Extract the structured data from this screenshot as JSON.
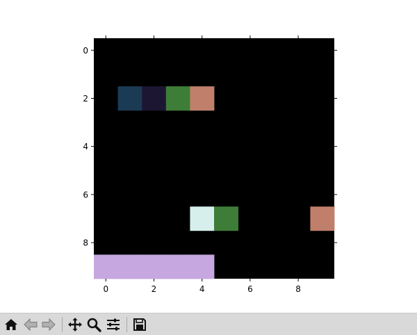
{
  "toolbar": {
    "buttons": [
      {
        "name": "home-icon"
      },
      {
        "name": "back-arrow-icon"
      },
      {
        "name": "forward-arrow-icon"
      },
      {
        "name": "pan-move-icon"
      },
      {
        "name": "zoom-magnifier-icon"
      },
      {
        "name": "configure-subplots-icon"
      },
      {
        "name": "save-disk-icon"
      }
    ]
  },
  "chart_data": {
    "type": "heatmap",
    "title": "",
    "xlabel": "",
    "ylabel": "",
    "rows": 10,
    "cols": 10,
    "xlim": [
      -0.5,
      9.5
    ],
    "ylim": [
      9.5,
      -0.5
    ],
    "x_ticks": [
      0,
      2,
      4,
      6,
      8
    ],
    "y_ticks": [
      0,
      2,
      4,
      6,
      8
    ],
    "background_color": "#000000",
    "grid": false,
    "cells": [
      {
        "row": 2,
        "col": 1,
        "color": "#1b3b55"
      },
      {
        "row": 2,
        "col": 2,
        "color": "#1c1633"
      },
      {
        "row": 2,
        "col": 3,
        "color": "#3e7d38"
      },
      {
        "row": 2,
        "col": 4,
        "color": "#bf7f6b"
      },
      {
        "row": 7,
        "col": 4,
        "color": "#d6efec"
      },
      {
        "row": 7,
        "col": 5,
        "color": "#3e7d38"
      },
      {
        "row": 7,
        "col": 9,
        "color": "#bf7f6b"
      },
      {
        "row": 9,
        "col": 0,
        "color": "#c6a7e0"
      },
      {
        "row": 9,
        "col": 1,
        "color": "#c6a7e0"
      },
      {
        "row": 9,
        "col": 2,
        "color": "#c6a7e0"
      },
      {
        "row": 9,
        "col": 3,
        "color": "#c6a7e0"
      },
      {
        "row": 9,
        "col": 4,
        "color": "#c6a7e0"
      }
    ]
  }
}
